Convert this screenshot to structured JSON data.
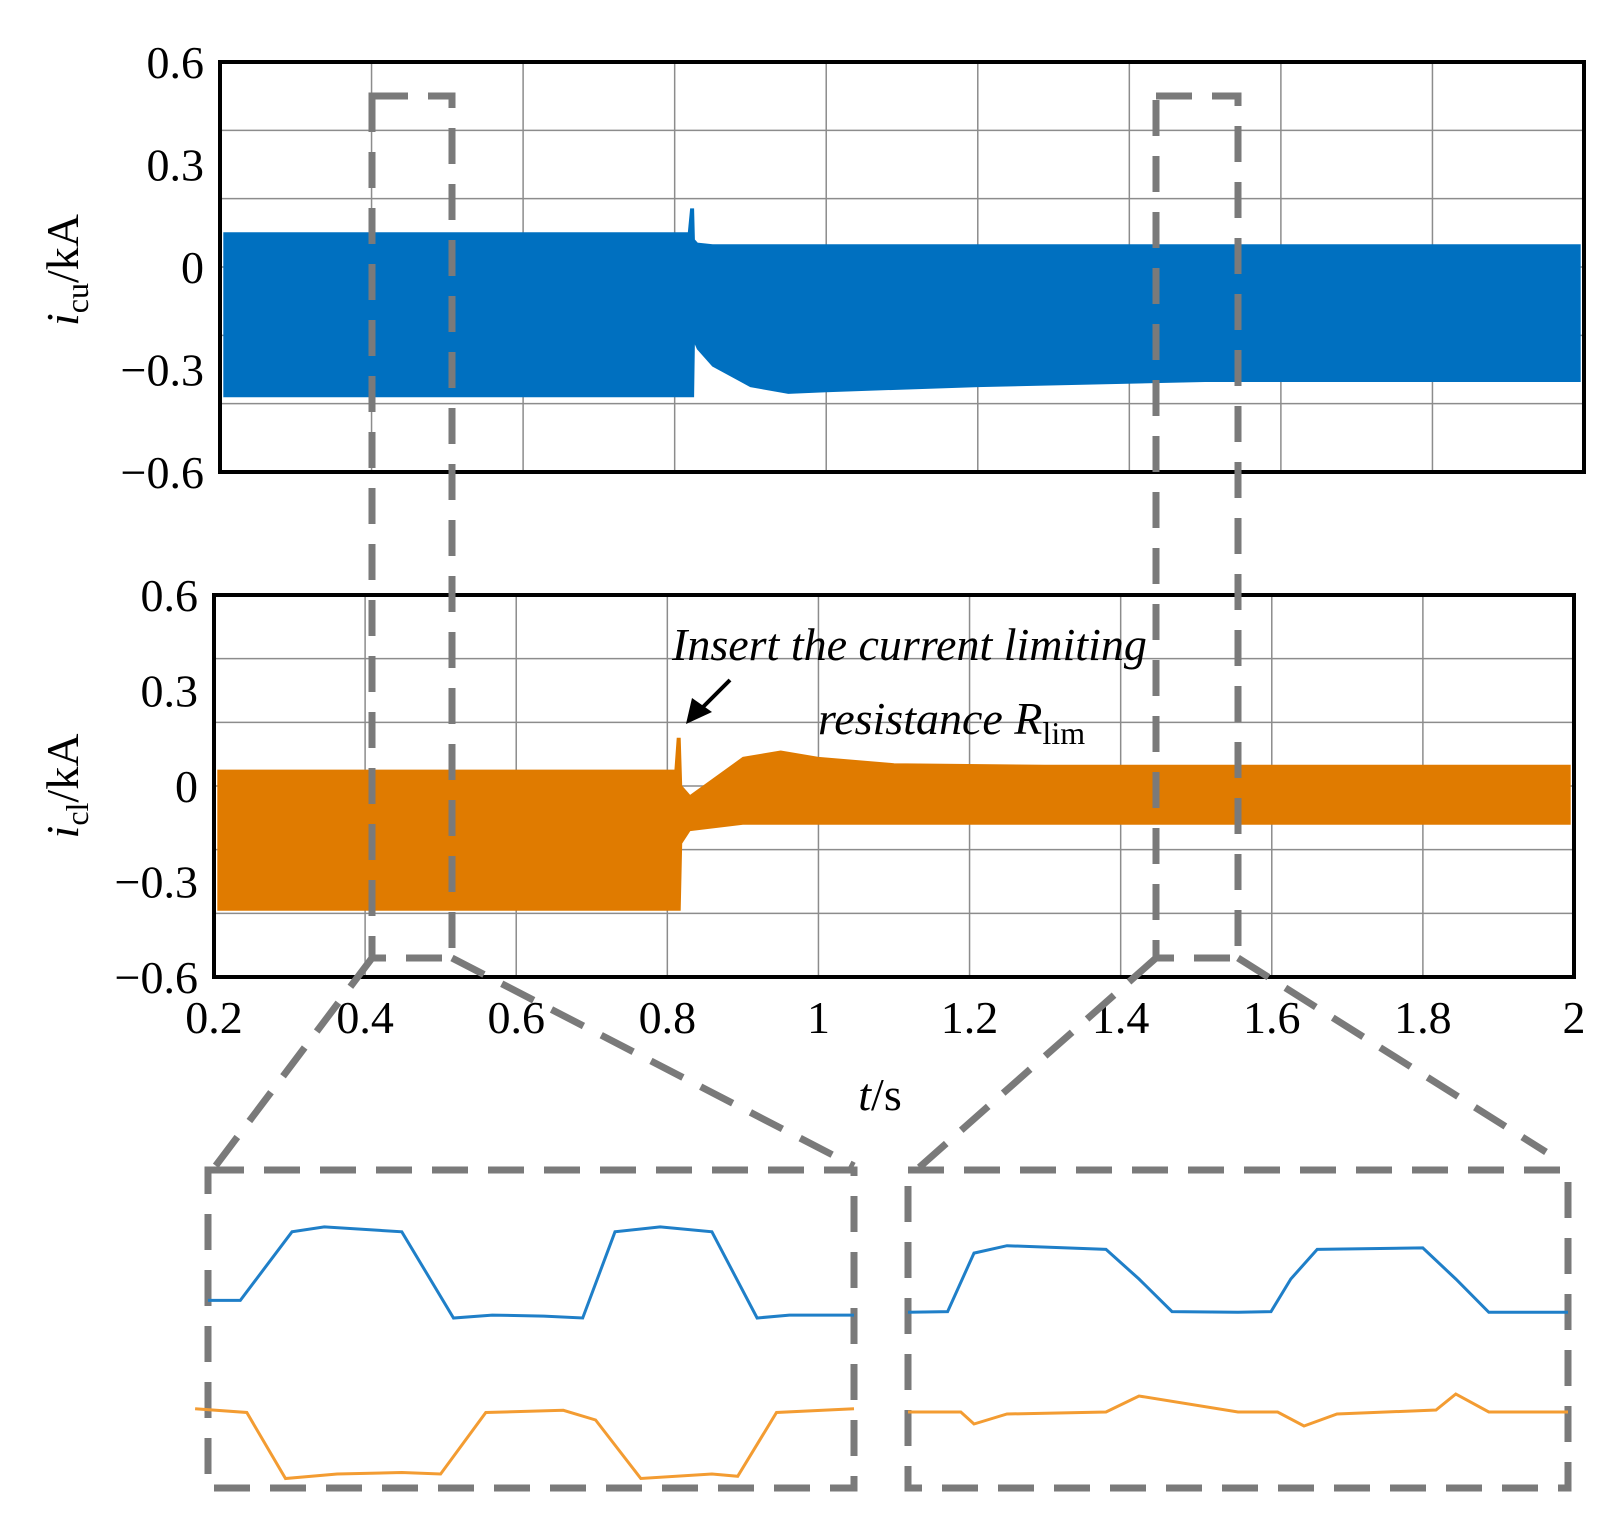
{
  "chart_data": [
    {
      "id": "top",
      "type": "line",
      "title": "",
      "ylabel_base": "i",
      "ylabel_sub": "cu",
      "ylabel_unit": "/kA",
      "series_name": "i_cu",
      "color": "#0070C0",
      "xlim": [
        0.2,
        2.0
      ],
      "ylim": [
        -0.6,
        0.6
      ],
      "yticks": [
        0.6,
        0.3,
        0,
        -0.3,
        -0.6
      ],
      "ytick_labels": [
        "0.6",
        "0.3",
        "0",
        "−0.3",
        "−0.6"
      ],
      "xgrid": [
        0.2,
        0.4,
        0.6,
        0.8,
        1.0,
        1.2,
        1.4,
        1.6,
        1.8,
        2.0
      ],
      "ygrid": [
        0.6,
        0.4,
        0.2,
        0,
        -0.2,
        -0.4,
        -0.6
      ],
      "envelope": {
        "x": [
          0.205,
          0.818,
          0.821,
          0.825,
          0.826,
          0.83,
          0.85,
          0.9,
          0.95,
          1.0,
          1.2,
          1.5,
          1.8,
          1.995
        ],
        "upper": [
          0.1,
          0.1,
          0.17,
          0.17,
          0.08,
          0.07,
          0.065,
          0.065,
          0.065,
          0.065,
          0.065,
          0.065,
          0.065,
          0.065
        ],
        "lower": [
          -0.38,
          -0.38,
          -0.38,
          -0.38,
          -0.22,
          -0.24,
          -0.29,
          -0.35,
          -0.37,
          -0.365,
          -0.35,
          -0.335,
          -0.335,
          -0.335
        ]
      }
    },
    {
      "id": "bottom",
      "type": "line",
      "title": "",
      "ylabel_base": "i",
      "ylabel_sub": "cl",
      "ylabel_unit": "/kA",
      "series_name": "i_cl",
      "color": "#E07B00",
      "xlim": [
        0.2,
        2.0
      ],
      "ylim": [
        -0.6,
        0.6
      ],
      "yticks": [
        0.6,
        0.3,
        0,
        -0.3,
        -0.6
      ],
      "ytick_labels": [
        "0.6",
        "0.3",
        "0",
        "−0.3",
        "−0.6"
      ],
      "xticks": [
        0.2,
        0.4,
        0.6,
        0.8,
        1.0,
        1.2,
        1.4,
        1.6,
        1.8,
        2.0
      ],
      "xtick_labels": [
        "0.2",
        "0.4",
        "0.6",
        "0.8",
        "1",
        "1.2",
        "1.4",
        "1.6",
        "1.8",
        "2"
      ],
      "xlabel_var": "t",
      "xlabel_unit": "/s",
      "xgrid": [
        0.2,
        0.4,
        0.6,
        0.8,
        1.0,
        1.2,
        1.4,
        1.6,
        1.8,
        2.0
      ],
      "ygrid": [
        0.6,
        0.4,
        0.2,
        0,
        -0.2,
        -0.4,
        -0.6
      ],
      "envelope": {
        "x": [
          0.205,
          0.81,
          0.813,
          0.817,
          0.819,
          0.83,
          0.9,
          0.95,
          1.0,
          1.1,
          1.3,
          1.6,
          1.995
        ],
        "upper": [
          0.05,
          0.05,
          0.15,
          0.15,
          0.0,
          -0.03,
          0.09,
          0.11,
          0.09,
          0.07,
          0.065,
          0.065,
          0.065
        ],
        "lower": [
          -0.39,
          -0.39,
          -0.39,
          -0.39,
          -0.18,
          -0.14,
          -0.12,
          -0.12,
          -0.12,
          -0.12,
          -0.12,
          -0.12,
          -0.12
        ]
      },
      "annotation": {
        "line1": "Insert the current limiting",
        "line2": "resistance R",
        "line2_sub": "lim",
        "arrow_target": [
          0.818,
          0.15
        ]
      }
    },
    {
      "id": "zoom-left",
      "type": "line",
      "source_window": [
        0.41,
        0.52
      ],
      "series": [
        {
          "name": "i_cu",
          "color": "#1F7FC8",
          "x": [
            0,
            0.05,
            0.13,
            0.18,
            0.3,
            0.38,
            0.44,
            0.52,
            0.58,
            0.63,
            0.7,
            0.78,
            0.85,
            0.9,
            1.0
          ],
          "y": [
            0.2,
            0.2,
            0.9,
            0.95,
            0.9,
            0.02,
            0.05,
            0.04,
            0.02,
            0.9,
            0.95,
            0.9,
            0.02,
            0.05,
            0.05
          ]
        },
        {
          "name": "i_cl",
          "color": "#F39C32",
          "x": [
            -0.02,
            0.06,
            0.12,
            0.2,
            0.3,
            0.36,
            0.43,
            0.55,
            0.6,
            0.67,
            0.78,
            0.82,
            0.88,
            1.0
          ],
          "y": [
            0.95,
            0.9,
            0.02,
            0.08,
            0.1,
            0.08,
            0.9,
            0.93,
            0.8,
            0.02,
            0.08,
            0.05,
            0.9,
            0.95
          ]
        }
      ]
    },
    {
      "id": "zoom-right",
      "type": "line",
      "source_window": [
        1.45,
        1.56
      ],
      "series": [
        {
          "name": "i_cu",
          "color": "#1F7FC8",
          "x": [
            0,
            0.06,
            0.1,
            0.15,
            0.3,
            0.35,
            0.4,
            0.5,
            0.55,
            0.58,
            0.62,
            0.78,
            0.83,
            0.88,
            1.0
          ],
          "y": [
            0.05,
            0.06,
            0.85,
            0.95,
            0.9,
            0.5,
            0.06,
            0.05,
            0.06,
            0.5,
            0.9,
            0.92,
            0.5,
            0.05,
            0.05
          ],
          "_plotband": "top"
        },
        {
          "name": "i_cl",
          "color": "#F39C32",
          "x": [
            0,
            0.08,
            0.1,
            0.15,
            0.3,
            0.35,
            0.5,
            0.56,
            0.6,
            0.65,
            0.8,
            0.83,
            0.88,
            1.0
          ],
          "y": [
            0.5,
            0.5,
            0.2,
            0.45,
            0.5,
            0.9,
            0.5,
            0.5,
            0.15,
            0.45,
            0.55,
            0.95,
            0.5,
            0.5
          ]
        }
      ]
    }
  ]
}
